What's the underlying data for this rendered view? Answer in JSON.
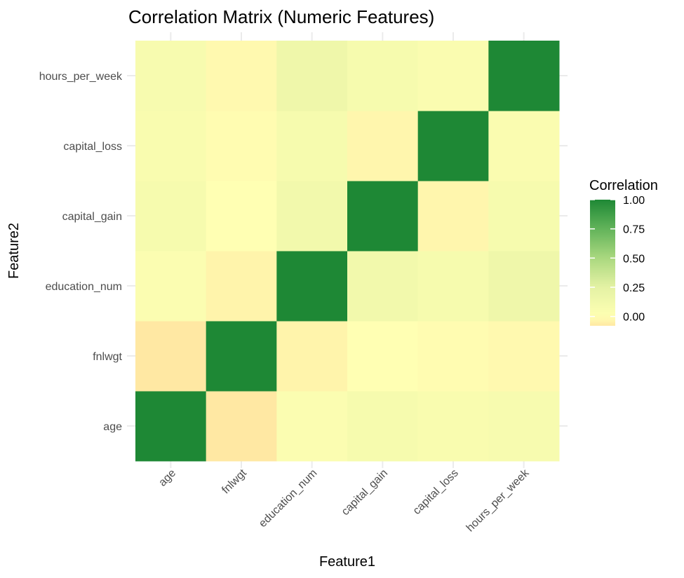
{
  "chart_data": {
    "type": "heatmap",
    "title": "Correlation Matrix (Numeric Features)",
    "xlabel": "Feature1",
    "ylabel": "Feature2",
    "x_categories": [
      "age",
      "fnlwgt",
      "education_num",
      "capital_gain",
      "capital_loss",
      "hours_per_week"
    ],
    "y_categories": [
      "age",
      "fnlwgt",
      "education_num",
      "capital_gain",
      "capital_loss",
      "hours_per_week"
    ],
    "values": [
      [
        1.0,
        -0.08,
        0.04,
        0.08,
        0.06,
        0.07
      ],
      [
        -0.08,
        1.0,
        -0.04,
        0.0,
        -0.01,
        -0.02
      ],
      [
        0.04,
        -0.04,
        1.0,
        0.12,
        0.08,
        0.15
      ],
      [
        0.08,
        0.0,
        0.12,
        1.0,
        -0.03,
        0.08
      ],
      [
        0.06,
        -0.01,
        0.08,
        -0.03,
        1.0,
        0.05
      ],
      [
        0.07,
        -0.02,
        0.15,
        0.08,
        0.05,
        1.0
      ]
    ],
    "legend": {
      "title": "Correlation",
      "ticks": [
        0.0,
        0.25,
        0.5,
        0.75,
        1.0
      ],
      "tick_labels": [
        "0.00",
        "0.25",
        "0.50",
        "0.75",
        "1.00"
      ],
      "range": [
        -0.08,
        1.0
      ],
      "position": "right"
    },
    "color_scale": {
      "low": "#ffe8a3",
      "zero": "#ffffb3",
      "high": "#1e8835"
    },
    "grid": true
  }
}
